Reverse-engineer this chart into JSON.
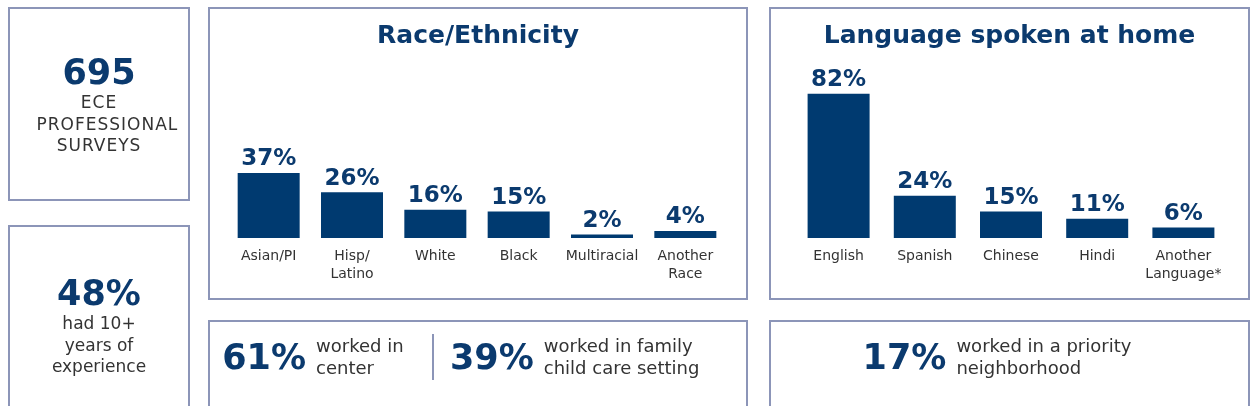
{
  "chart_data": [
    {
      "type": "other",
      "annotations": [
        "695",
        "ECE PROFESSIONAL SURVEYS"
      ]
    },
    {
      "type": "other",
      "annotations": [
        "48%",
        "had 10+ years of experience"
      ]
    },
    {
      "type": "bar",
      "title": "Race/Ethnicity",
      "categories": [
        "Asian/PI",
        "Hisp/ Latino",
        "White",
        "Black",
        "Multiracial",
        "Another Race"
      ],
      "values": [
        37,
        26,
        16,
        15,
        2,
        4
      ],
      "value_labels": [
        "37%",
        "26%",
        "16%",
        "15%",
        "2%",
        "4%"
      ],
      "color": "#003a70"
    },
    {
      "type": "bar",
      "title": "Language spoken at home",
      "categories": [
        "English",
        "Spanish",
        "Chinese",
        "Hindi",
        "Another Language*"
      ],
      "values": [
        82,
        24,
        15,
        11,
        6
      ],
      "value_labels": [
        "82%",
        "24%",
        "15%",
        "11%",
        "6%"
      ],
      "color": "#003a70"
    },
    {
      "type": "other",
      "annotations": [
        "61%",
        "worked in center",
        "39%",
        "worked in family child care setting"
      ]
    },
    {
      "type": "other",
      "annotations": [
        "17%",
        "worked in a priority neighborhood"
      ]
    }
  ]
}
